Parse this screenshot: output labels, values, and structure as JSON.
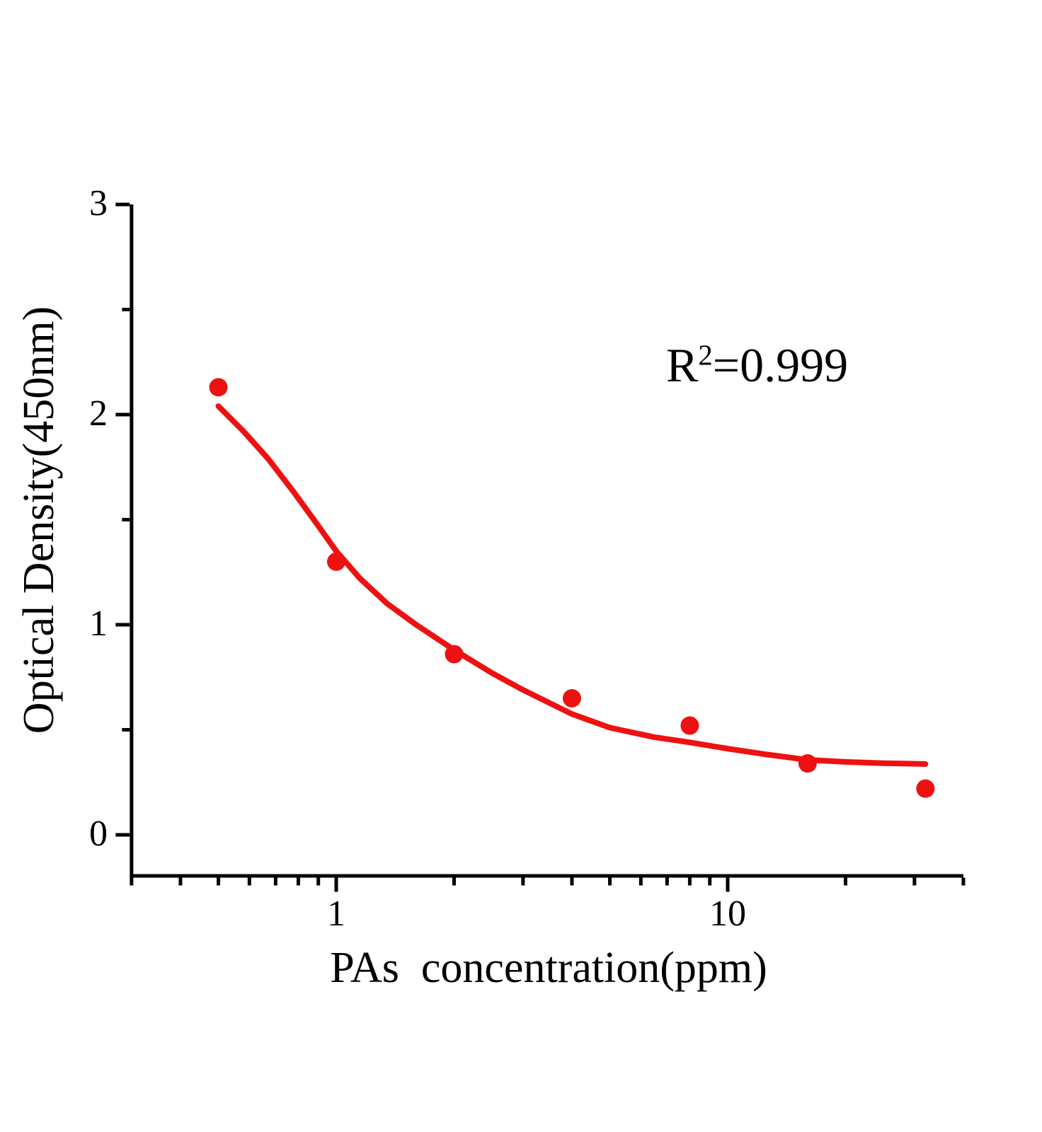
{
  "chart_data": {
    "type": "scatter",
    "title": "",
    "xlabel": "PAs  concentration(ppm)",
    "ylabel": "Optical Density(450nm)",
    "x_scale": "log10",
    "xlim": [
      0.3,
      40
    ],
    "ylim": [
      -0.2,
      3
    ],
    "grid": false,
    "x_axis": {
      "major_ticks": [
        {
          "value": 1,
          "label": "1"
        },
        {
          "value": 10,
          "label": "10"
        }
      ],
      "minor_ticks": [
        0.3,
        0.4,
        0.5,
        0.6,
        0.7,
        0.8,
        0.9,
        2,
        3,
        4,
        5,
        6,
        7,
        8,
        9,
        20,
        30,
        40
      ]
    },
    "y_axis": {
      "major_ticks": [
        {
          "value": 0,
          "label": "0"
        },
        {
          "value": 1,
          "label": "1"
        },
        {
          "value": 2,
          "label": "2"
        },
        {
          "value": 3,
          "label": "3"
        }
      ],
      "minor_ticks": [
        0.5,
        1.5,
        2.5
      ]
    },
    "series": [
      {
        "type": "scatter",
        "marker": "circle",
        "color": "#ee1111",
        "x": [
          0.5,
          1,
          2,
          4,
          8,
          16,
          32
        ],
        "y": [
          2.13,
          1.3,
          0.86,
          0.65,
          0.52,
          0.34,
          0.22
        ]
      }
    ],
    "fit_curve": {
      "color": "#ee1111",
      "r_squared": "0.999",
      "points": [
        [
          0.5,
          2.04
        ],
        [
          0.58,
          1.92
        ],
        [
          0.67,
          1.79
        ],
        [
          0.78,
          1.63
        ],
        [
          0.9,
          1.47
        ],
        [
          1.0,
          1.35
        ],
        [
          1.15,
          1.22
        ],
        [
          1.35,
          1.1
        ],
        [
          1.6,
          1.0
        ],
        [
          2.0,
          0.88
        ],
        [
          2.5,
          0.77
        ],
        [
          3.0,
          0.69
        ],
        [
          4.0,
          0.575
        ],
        [
          5.0,
          0.51
        ],
        [
          6.5,
          0.465
        ],
        [
          8.0,
          0.44
        ],
        [
          10,
          0.41
        ],
        [
          12.5,
          0.383
        ],
        [
          16,
          0.357
        ],
        [
          20,
          0.347
        ],
        [
          25,
          0.341
        ],
        [
          32,
          0.337
        ]
      ]
    },
    "annotation": {
      "base": "R",
      "superscript": "2",
      "rest": "=0.999"
    },
    "legend": null
  },
  "colors": {
    "series": "#ee1111",
    "axis": "#000000",
    "text": "#000000",
    "background": "#ffffff"
  }
}
